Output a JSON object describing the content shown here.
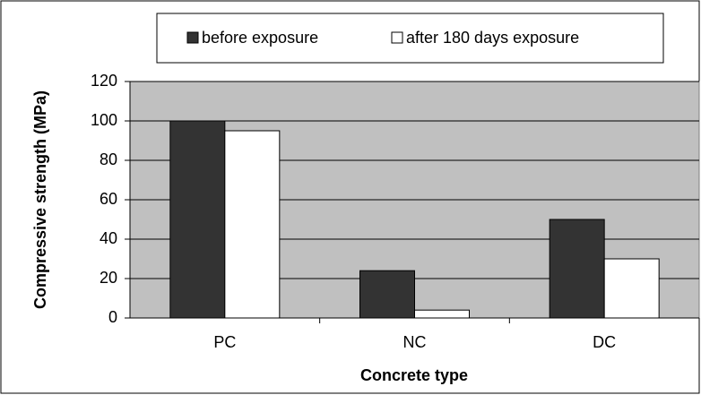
{
  "chart_data": {
    "type": "bar",
    "x_label": "Concrete type",
    "y_label": "Compressive strength (MPa)",
    "categories": [
      "PC",
      "NC",
      "DC"
    ],
    "series": [
      {
        "name": "before exposure",
        "color": "#333333",
        "values": [
          100,
          24,
          50
        ]
      },
      {
        "name": "after 180 days exposure",
        "color": "#ffffff",
        "values": [
          95,
          4,
          30
        ]
      }
    ],
    "ylim": [
      0,
      120
    ],
    "yticks": [
      0,
      20,
      40,
      60,
      80,
      100,
      120
    ],
    "grid": true,
    "plot_background": "#c0c0c0",
    "legend": "top"
  }
}
